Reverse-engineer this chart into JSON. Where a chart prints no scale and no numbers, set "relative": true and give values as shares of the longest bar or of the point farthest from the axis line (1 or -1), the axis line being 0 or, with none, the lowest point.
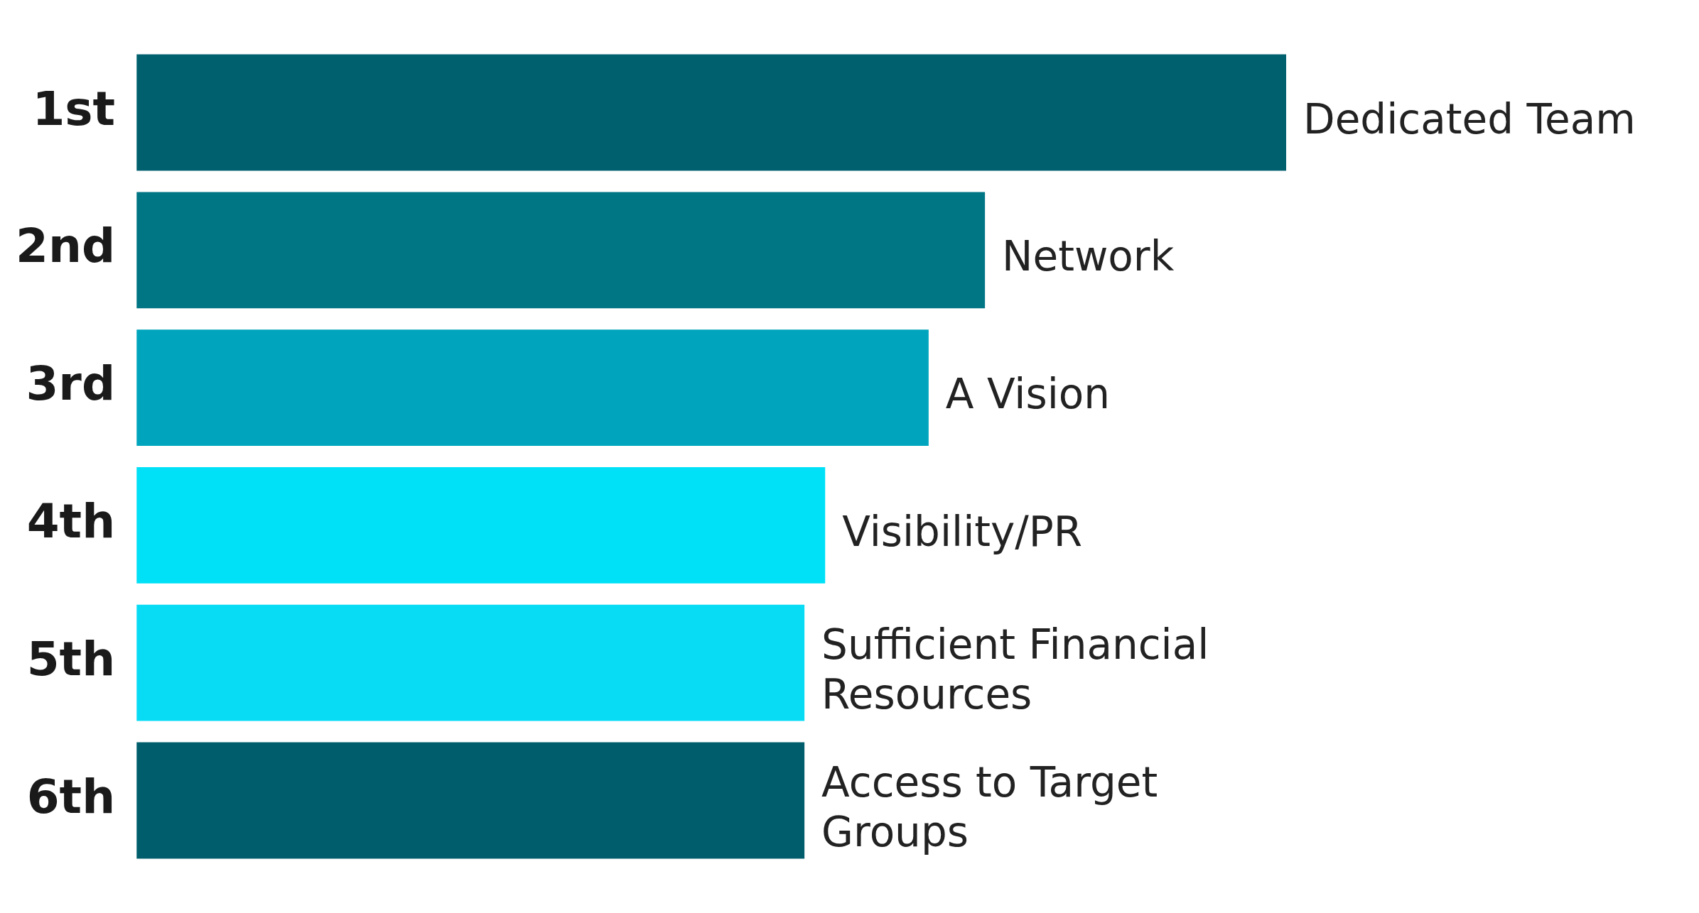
{
  "chart_data": {
    "type": "bar",
    "orientation": "horizontal",
    "relative": true,
    "categories": [
      "1st",
      "2nd",
      "3rd",
      "4th",
      "5th",
      "6th"
    ],
    "values": [
      1,
      0.738,
      0.689,
      0.599,
      0.581,
      0.581
    ],
    "colors": [
      "#00606e",
      "#007584",
      "#00a5bd",
      "#00e0f7",
      "#08dcf5",
      "#005e6c"
    ],
    "annotations": [
      {
        "text": "Dedicated Team",
        "x": 1,
        "y": "1st"
      },
      {
        "text": "Network",
        "x": 0.738,
        "y": "2nd"
      },
      {
        "text": "A Vision",
        "x": 0.689,
        "y": "3rd"
      },
      {
        "text": "Visibility/PR",
        "x": 0.599,
        "y": "4th"
      },
      {
        "text": "Sufficient Financial Resources",
        "x": 0.581,
        "y": "5th"
      },
      {
        "text": "Access to Target Groups",
        "x": 0.581,
        "y": "6th"
      }
    ],
    "legend": false
  }
}
